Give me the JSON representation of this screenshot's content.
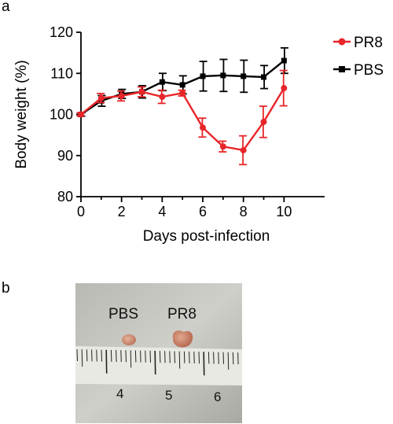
{
  "panels": {
    "a_label": "a",
    "b_label": "b"
  },
  "chart_data": {
    "type": "line",
    "xlabel": "Days post-infection",
    "ylabel": "Body weight (%)",
    "xlim": [
      0,
      12
    ],
    "ylim": [
      80,
      120
    ],
    "xticks": [
      0,
      2,
      4,
      6,
      8,
      10
    ],
    "yticks": [
      80,
      90,
      100,
      110,
      120
    ],
    "legend_position": "top-right",
    "grid": false,
    "series": [
      {
        "name": "PR8",
        "color": "#e8262a",
        "marker": "circle",
        "x": [
          0,
          1,
          2,
          3,
          4,
          5,
          6,
          7,
          8,
          9,
          10
        ],
        "values": [
          100,
          104,
          104.5,
          105.5,
          104.3,
          105.2,
          96.8,
          92.2,
          91.3,
          98.2,
          106.4
        ],
        "errors": [
          0.4,
          1.1,
          1.2,
          1.2,
          1.6,
          0.7,
          2.3,
          1.3,
          3.5,
          3.8,
          4.3
        ]
      },
      {
        "name": "PBS",
        "color": "#000000",
        "marker": "square",
        "x": [
          0,
          1,
          2,
          3,
          4,
          5,
          6,
          7,
          8,
          9,
          10
        ],
        "values": [
          100,
          103.3,
          105,
          105.5,
          107.9,
          107.2,
          109.3,
          109.5,
          109.3,
          109.1,
          113.1
        ],
        "errors": [
          0.4,
          1.3,
          1.1,
          1.5,
          2.1,
          2.2,
          3.6,
          3.9,
          3.9,
          2.8,
          3.1
        ]
      }
    ]
  },
  "photo": {
    "labels": [
      "PBS",
      "PR8"
    ],
    "ruler_numbers": [
      "4",
      "5",
      "6"
    ]
  }
}
